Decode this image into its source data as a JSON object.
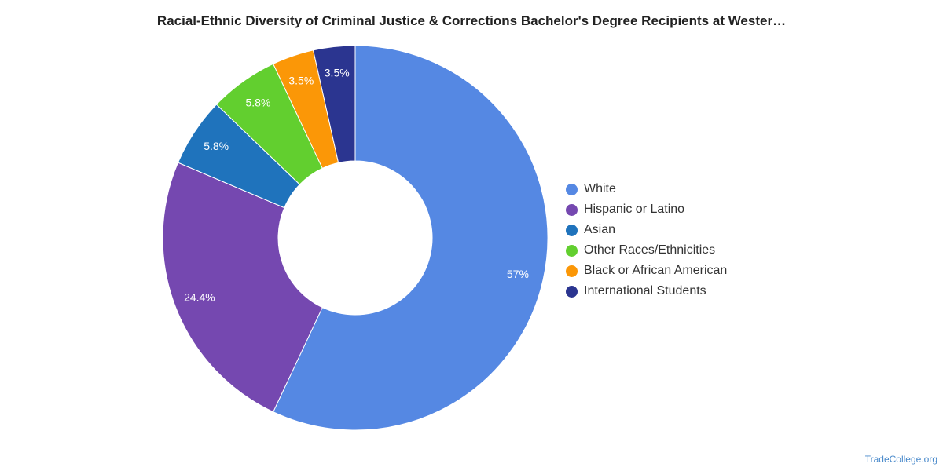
{
  "title": "Racial-Ethnic Diversity of Criminal Justice & Corrections Bachelor's Degree Recipients at Wester…",
  "watermark": "TradeCollege.org",
  "chart_data": {
    "type": "pie",
    "style": "donut",
    "legend_position": "right",
    "slices": [
      {
        "name": "White",
        "value": 57,
        "label": "57%",
        "color": "#5588e3"
      },
      {
        "name": "Hispanic or Latino",
        "value": 24.4,
        "label": "24.4%",
        "color": "#7548b0"
      },
      {
        "name": "Asian",
        "value": 5.8,
        "label": "5.8%",
        "color": "#1f73bc"
      },
      {
        "name": "Other Races/Ethnicities",
        "value": 5.8,
        "label": "5.8%",
        "color": "#62cf2f"
      },
      {
        "name": "Black or African American",
        "value": 3.5,
        "label": "3.5%",
        "color": "#fb9707"
      },
      {
        "name": "International Students",
        "value": 3.5,
        "label": "3.5%",
        "color": "#2b3590"
      }
    ]
  }
}
